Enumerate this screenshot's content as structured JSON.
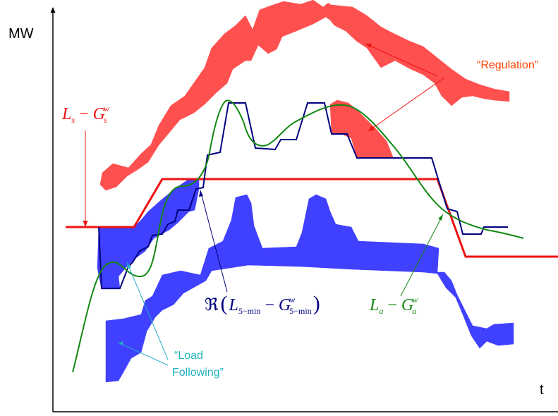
{
  "axes": {
    "y_label": "MW",
    "x_label": "t"
  },
  "labels": {
    "regulation": "“Regulation”",
    "load_following_line1": "“Load",
    "load_following_line2": "Following”",
    "ls_gs": {
      "L": "L",
      "L_sub": "s",
      "minus": " − ",
      "G": "G",
      "G_sub": "s",
      "G_sup": "w"
    },
    "la_ga": {
      "L": "L",
      "L_sub": "a",
      "minus": " − ",
      "G": "G",
      "G_sub": "a",
      "G_sup": "w"
    },
    "re_5min": {
      "Re": "ℜ",
      "open": "(",
      "L": "L",
      "L_sub": "5−min",
      "minus": " − ",
      "G": "G",
      "G_sub": "5−min",
      "G_sup": "w",
      "close": ")"
    }
  },
  "colors": {
    "regulation_band": "#ff5050",
    "load_following_band": "#4040ff",
    "schedule_line": "#ee1111",
    "actual_line": "#118811",
    "five_min_line": "#000080",
    "regulation_text": "#ff4000",
    "load_following_text": "#20b0c0",
    "axis": "#000000"
  }
}
